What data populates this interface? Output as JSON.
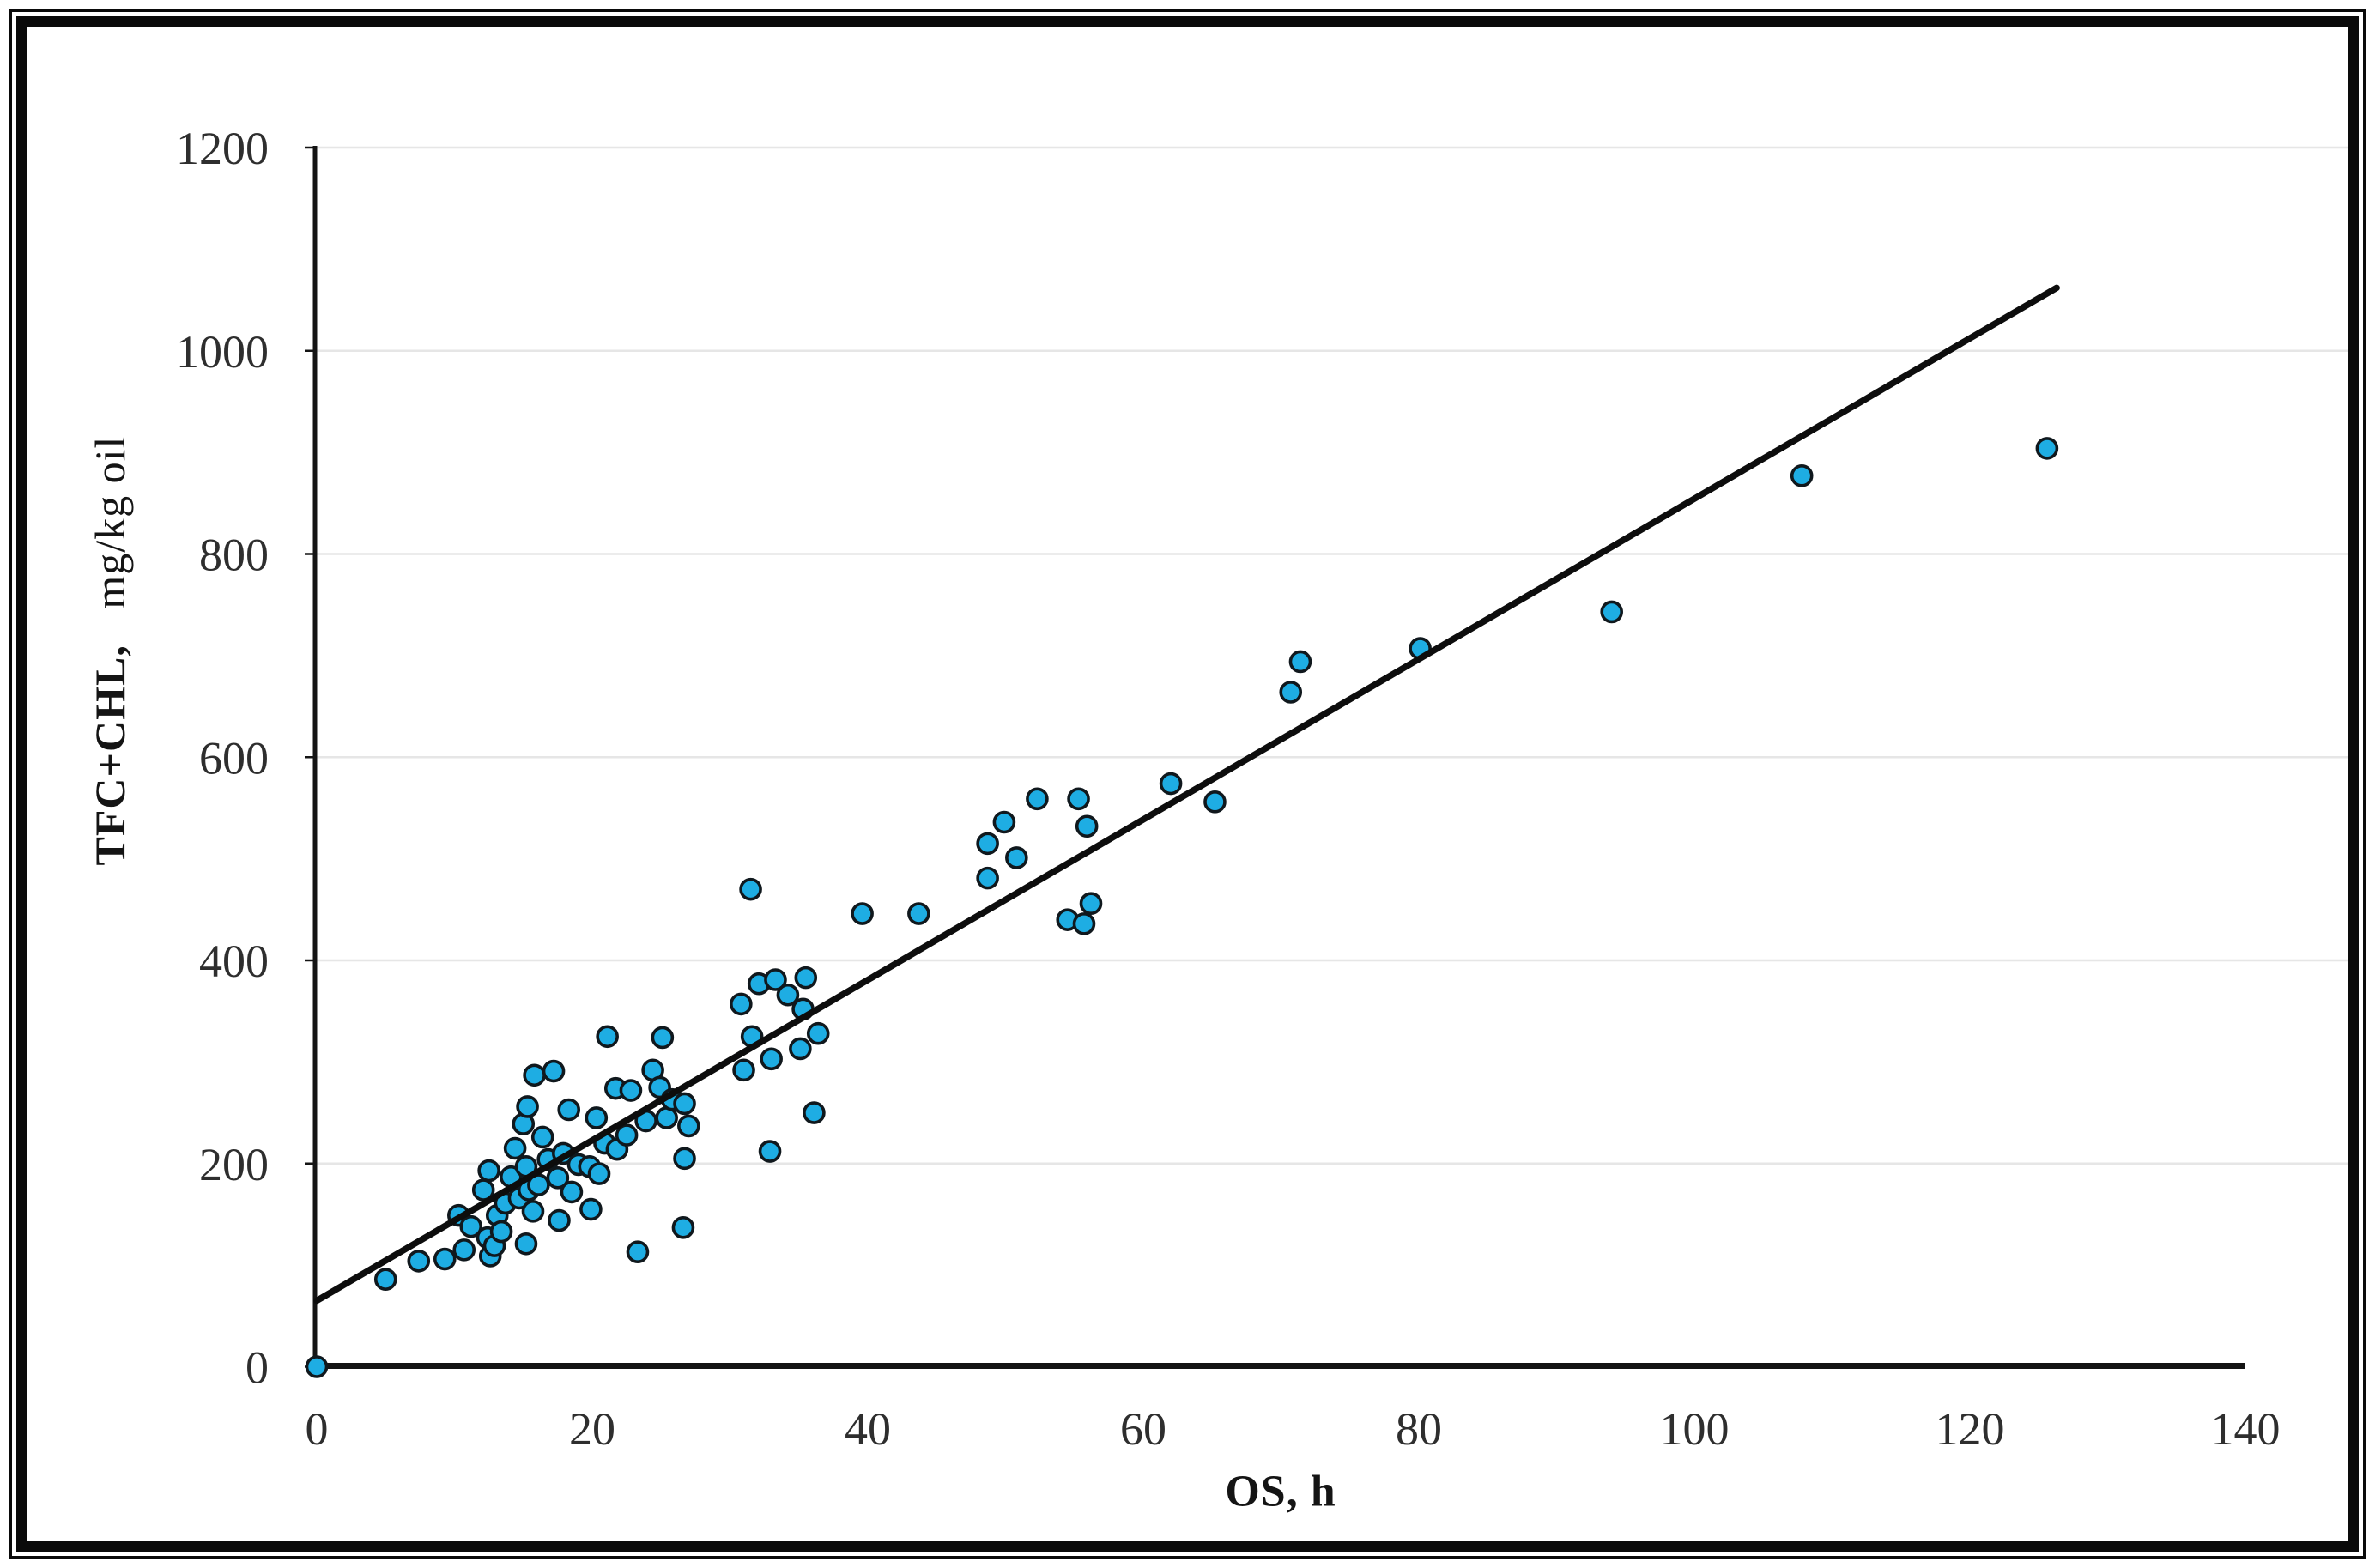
{
  "figure": {
    "background": "#ffffff",
    "frame_color": "#0a0a0a"
  },
  "chart_data": {
    "type": "scatter",
    "title": "",
    "xlabel": "OS, h",
    "ylabel_main": "TFC+CHL,",
    "ylabel_unit": "mg/kg oil",
    "xlim": [
      0,
      140
    ],
    "ylim": [
      0,
      1200
    ],
    "xticks": [
      0,
      20,
      40,
      60,
      80,
      100,
      120,
      140
    ],
    "yticks": [
      0,
      200,
      400,
      600,
      800,
      1000,
      1200
    ],
    "grid": "horizontal",
    "gridline_color": "#e6e6e6",
    "axis_color": "#141414",
    "tick_label_color": "#2e2e2e",
    "marker_fill": "#1EADE3",
    "marker_stroke": "#10181D",
    "trendline": {
      "x1": 0,
      "y1": 65,
      "x2": 126.3,
      "y2": 1062,
      "color": "#0d0d0d"
    },
    "legend": "none",
    "points": [
      [
        0,
        0
      ],
      [
        5.0,
        86
      ],
      [
        7.4,
        104
      ],
      [
        9.3,
        106
      ],
      [
        10.7,
        115
      ],
      [
        12.6,
        109
      ],
      [
        10.3,
        149
      ],
      [
        11.2,
        138
      ],
      [
        12.1,
        174
      ],
      [
        12.4,
        127
      ],
      [
        12.5,
        193
      ],
      [
        12.9,
        119
      ],
      [
        13.1,
        149
      ],
      [
        13.4,
        133
      ],
      [
        13.7,
        161
      ],
      [
        14.1,
        187
      ],
      [
        14.4,
        215
      ],
      [
        14.7,
        166
      ],
      [
        15.2,
        197
      ],
      [
        15.2,
        121
      ],
      [
        15.4,
        174
      ],
      [
        15.7,
        153
      ],
      [
        16.1,
        179
      ],
      [
        16.4,
        226
      ],
      [
        16.8,
        204
      ],
      [
        17.5,
        186
      ],
      [
        17.6,
        144
      ],
      [
        17.9,
        210
      ],
      [
        18.5,
        172
      ],
      [
        19.0,
        199
      ],
      [
        19.8,
        197
      ],
      [
        19.9,
        155
      ],
      [
        20.5,
        190
      ],
      [
        20.9,
        220
      ],
      [
        21.8,
        214
      ],
      [
        23.3,
        113
      ],
      [
        15.0,
        239
      ],
      [
        15.3,
        256
      ],
      [
        15.8,
        287
      ],
      [
        17.2,
        291
      ],
      [
        18.3,
        253
      ],
      [
        20.3,
        245
      ],
      [
        21.7,
        274
      ],
      [
        22.5,
        228
      ],
      [
        22.8,
        272
      ],
      [
        23.9,
        242
      ],
      [
        24.4,
        292
      ],
      [
        24.9,
        275
      ],
      [
        25.4,
        245
      ],
      [
        25.8,
        263
      ],
      [
        26.7,
        259
      ],
      [
        27.0,
        237
      ],
      [
        26.7,
        205
      ],
      [
        21.1,
        325
      ],
      [
        25.1,
        324
      ],
      [
        26.6,
        137
      ],
      [
        32.9,
        212
      ],
      [
        36.1,
        250
      ],
      [
        30.8,
        357
      ],
      [
        31.0,
        292
      ],
      [
        31.6,
        325
      ],
      [
        32.1,
        377
      ],
      [
        33.0,
        303
      ],
      [
        33.3,
        381
      ],
      [
        34.2,
        366
      ],
      [
        35.1,
        313
      ],
      [
        35.3,
        352
      ],
      [
        35.5,
        383
      ],
      [
        36.4,
        328
      ],
      [
        31.5,
        470
      ],
      [
        39.6,
        446
      ],
      [
        43.7,
        446
      ],
      [
        48.7,
        515
      ],
      [
        48.7,
        481
      ],
      [
        49.9,
        536
      ],
      [
        50.8,
        501
      ],
      [
        52.3,
        559
      ],
      [
        54.5,
        440
      ],
      [
        55.3,
        559
      ],
      [
        55.7,
        436
      ],
      [
        55.9,
        532
      ],
      [
        56.2,
        456
      ],
      [
        62.0,
        574
      ],
      [
        65.2,
        556
      ],
      [
        70.7,
        664
      ],
      [
        71.4,
        694
      ],
      [
        80.1,
        707
      ],
      [
        94.0,
        743
      ],
      [
        107.8,
        877
      ],
      [
        125.6,
        904
      ]
    ]
  }
}
